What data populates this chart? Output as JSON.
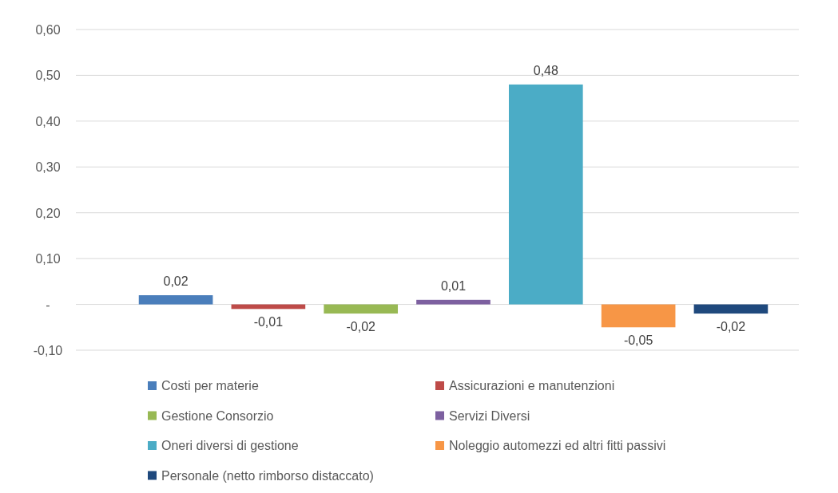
{
  "chart_data": {
    "type": "bar",
    "categories": [
      null
    ],
    "series": [
      {
        "name": "Costi per materie",
        "color": "#4a7ebb",
        "values": [
          0.02
        ],
        "value_labels": [
          "0,02"
        ]
      },
      {
        "name": "Assicurazioni e manutenzioni",
        "color": "#be4b48",
        "values": [
          -0.01
        ],
        "value_labels": [
          "-0,01"
        ]
      },
      {
        "name": "Gestione Consorzio",
        "color": "#98b954",
        "values": [
          -0.02
        ],
        "value_labels": [
          "-0,02"
        ]
      },
      {
        "name": "Servizi Diversi",
        "color": "#7d60a0",
        "values": [
          0.01
        ],
        "value_labels": [
          "0,01"
        ]
      },
      {
        "name": "Oneri diversi di gestione",
        "color": "#4bacc6",
        "values": [
          0.48
        ],
        "value_labels": [
          "0,48"
        ]
      },
      {
        "name": "Noleggio automezzi ed altri fitti passivi",
        "color": "#f79646",
        "values": [
          -0.05
        ],
        "value_labels": [
          "-0,05"
        ]
      },
      {
        "name": "Personale (netto rimborso distaccato)",
        "color": "#1f497d",
        "values": [
          -0.02
        ],
        "value_labels": [
          "-0,02"
        ]
      }
    ],
    "ylim": [
      -0.1,
      0.6
    ],
    "yticks": [
      {
        "value": -0.1,
        "label": "-0,10"
      },
      {
        "value": 0,
        "label": "-"
      },
      {
        "value": 0.1,
        "label": "0,10"
      },
      {
        "value": 0.2,
        "label": "0,20"
      },
      {
        "value": 0.3,
        "label": "0,30"
      },
      {
        "value": 0.4,
        "label": "0,40"
      },
      {
        "value": 0.5,
        "label": "0,50"
      },
      {
        "value": 0.6,
        "label": "0,60"
      }
    ],
    "grid": "y",
    "legend": "bottom"
  }
}
